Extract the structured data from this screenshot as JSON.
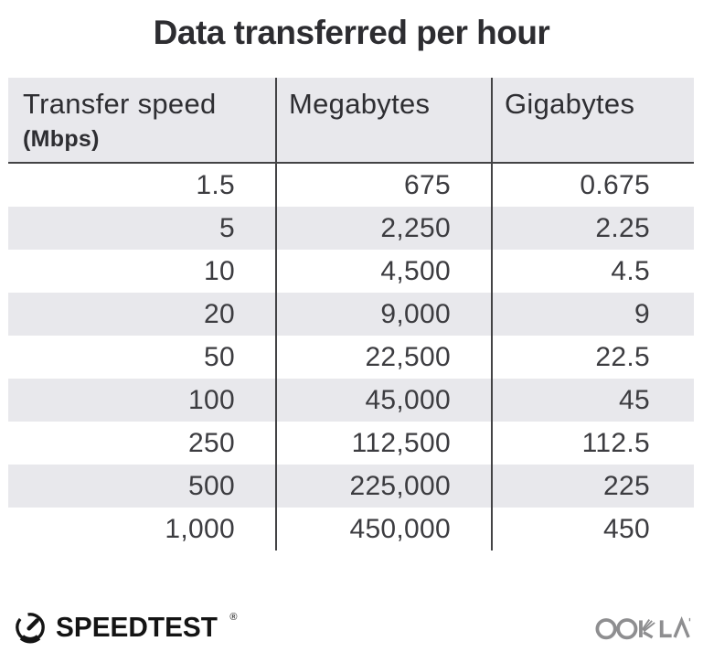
{
  "title": "Data transferred per hour",
  "table": {
    "headers": [
      {
        "label": "Transfer speed",
        "sublabel": "(Mbps)"
      },
      {
        "label": "Megabytes",
        "sublabel": ""
      },
      {
        "label": "Gigabytes",
        "sublabel": ""
      }
    ],
    "rows": [
      [
        "1.5",
        "675",
        "0.675"
      ],
      [
        "5",
        "2,250",
        "2.25"
      ],
      [
        "10",
        "4,500",
        "4.5"
      ],
      [
        "20",
        "9,000",
        "9"
      ],
      [
        "50",
        "22,500",
        "22.5"
      ],
      [
        "100",
        "45,000",
        "45"
      ],
      [
        "250",
        "112,500",
        "112.5"
      ],
      [
        "500",
        "225,000",
        "225"
      ],
      [
        "1,000",
        "450,000",
        "450"
      ]
    ]
  },
  "footer": {
    "speedtest_label": "SPEEDTEST",
    "speedtest_registered_mark": "®",
    "ookla_label": "OOKLA"
  },
  "colors": {
    "header_bg": "#e8e8ec",
    "row_alt_bg": "#e8e8ec",
    "divider": "#434345",
    "title_text": "#2d2d31",
    "cell_text": "#3c3c40",
    "speedtest_black": "#141414",
    "ookla_gray": "#8e8e90"
  },
  "chart_data": {
    "type": "table",
    "title": "Data transferred per hour",
    "columns": [
      "Transfer speed (Mbps)",
      "Megabytes",
      "Gigabytes"
    ],
    "rows": [
      [
        1.5,
        675,
        0.675
      ],
      [
        5,
        2250,
        2.25
      ],
      [
        10,
        4500,
        4.5
      ],
      [
        20,
        9000,
        9
      ],
      [
        50,
        22500,
        22.5
      ],
      [
        100,
        45000,
        45
      ],
      [
        250,
        112500,
        112.5
      ],
      [
        500,
        225000,
        225
      ],
      [
        1000,
        450000,
        450
      ]
    ]
  }
}
